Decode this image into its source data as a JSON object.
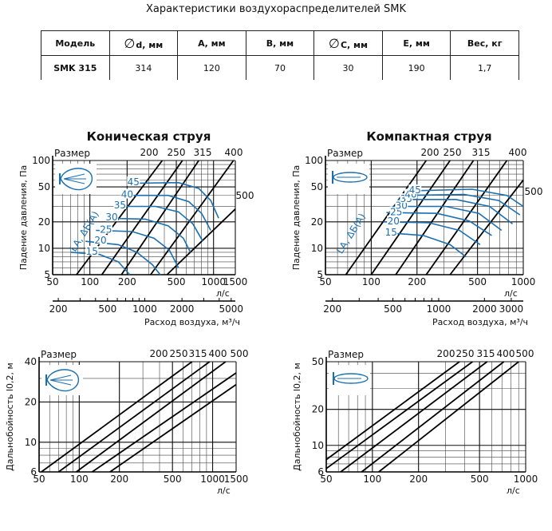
{
  "page_title": "Характеристики воздухораспределителей SMK",
  "table": {
    "headers": [
      {
        "symbol": "",
        "label": "Модель"
      },
      {
        "symbol": "∅",
        "label": "d, мм"
      },
      {
        "symbol": "",
        "label": "А, мм"
      },
      {
        "symbol": "",
        "label": "В, мм"
      },
      {
        "symbol": "∅",
        "label": "С, мм"
      },
      {
        "symbol": "",
        "label": "Е, мм"
      },
      {
        "symbol": "",
        "label": "Вес, кг"
      }
    ],
    "rows": [
      [
        "SMK 315",
        "314",
        "120",
        "70",
        "30",
        "190",
        "1,7"
      ]
    ]
  },
  "chart_data": [
    {
      "id": "conical-pressure",
      "type": "line",
      "title": "Коническая струя",
      "ylabel": "Падение давления, Па",
      "xlabel": "л/с",
      "x2label": "Расход воздуха, м³/ч",
      "x_scale": "log",
      "y_scale": "log",
      "xlim": [
        50,
        1500
      ],
      "ylim": [
        5,
        100
      ],
      "x_ticks": [
        "50",
        "100",
        "200",
        "500",
        "1000",
        "1500"
      ],
      "x2_ticks": [
        "200",
        "500",
        "1000",
        "2000",
        "5000"
      ],
      "y_ticks": [
        "5",
        "10",
        "20",
        "50",
        "100"
      ],
      "size_label": "Размер",
      "sizes": [
        "200",
        "250",
        "315",
        "400",
        "500"
      ],
      "noise_label": "LA, ΔБ(А)",
      "noise_levels": [
        "15",
        "20",
        "25",
        "30",
        "35",
        "40",
        "45"
      ],
      "grid": true,
      "line_color": "#000000",
      "noise_color": "#1a6fb0"
    },
    {
      "id": "compact-pressure",
      "type": "line",
      "title": "Компактная струя",
      "ylabel": "Падение давления, Па",
      "xlabel": "л/с",
      "x2label": "Расход воздуха, м³/ч",
      "x_scale": "log",
      "y_scale": "log",
      "xlim": [
        50,
        1000
      ],
      "ylim": [
        5,
        100
      ],
      "x_ticks": [
        "50",
        "100",
        "200",
        "500",
        "1000"
      ],
      "x2_ticks": [
        "200",
        "500",
        "1000",
        "2000",
        "3000"
      ],
      "y_ticks": [
        "5",
        "10",
        "20",
        "50",
        "100"
      ],
      "size_label": "Размер",
      "sizes": [
        "200",
        "250",
        "315",
        "400",
        "500"
      ],
      "noise_label": "LA, ΔБ(А)",
      "noise_levels": [
        "15",
        "20",
        "25",
        "30",
        "35",
        "40",
        "45"
      ],
      "grid": true,
      "line_color": "#000000",
      "noise_color": "#1a6fb0"
    },
    {
      "id": "conical-throw",
      "type": "line",
      "ylabel": "Дальнобойность l0,2, м",
      "xlabel": "л/с",
      "x_scale": "log",
      "y_scale": "log",
      "xlim": [
        50,
        1500
      ],
      "ylim": [
        6,
        40
      ],
      "x_ticks": [
        "50",
        "100",
        "200",
        "500",
        "1000",
        "1500"
      ],
      "y_ticks": [
        "6",
        "10",
        "20",
        "40"
      ],
      "size_label": "Размер",
      "sizes": [
        "200",
        "250",
        "315",
        "400",
        "500"
      ],
      "grid": true,
      "line_color": "#000000"
    },
    {
      "id": "compact-throw",
      "type": "line",
      "ylabel": "Дальнобойность l0,2, м",
      "xlabel": "л/с",
      "x_scale": "log",
      "y_scale": "log",
      "xlim": [
        50,
        1000
      ],
      "ylim": [
        6,
        50
      ],
      "x_ticks": [
        "50",
        "100",
        "200",
        "500",
        "1000"
      ],
      "y_ticks": [
        "6",
        "10",
        "20",
        "50"
      ],
      "size_label": "Размер",
      "sizes": [
        "200",
        "250",
        "315",
        "400",
        "500"
      ],
      "grid": true,
      "line_color": "#000000"
    }
  ]
}
